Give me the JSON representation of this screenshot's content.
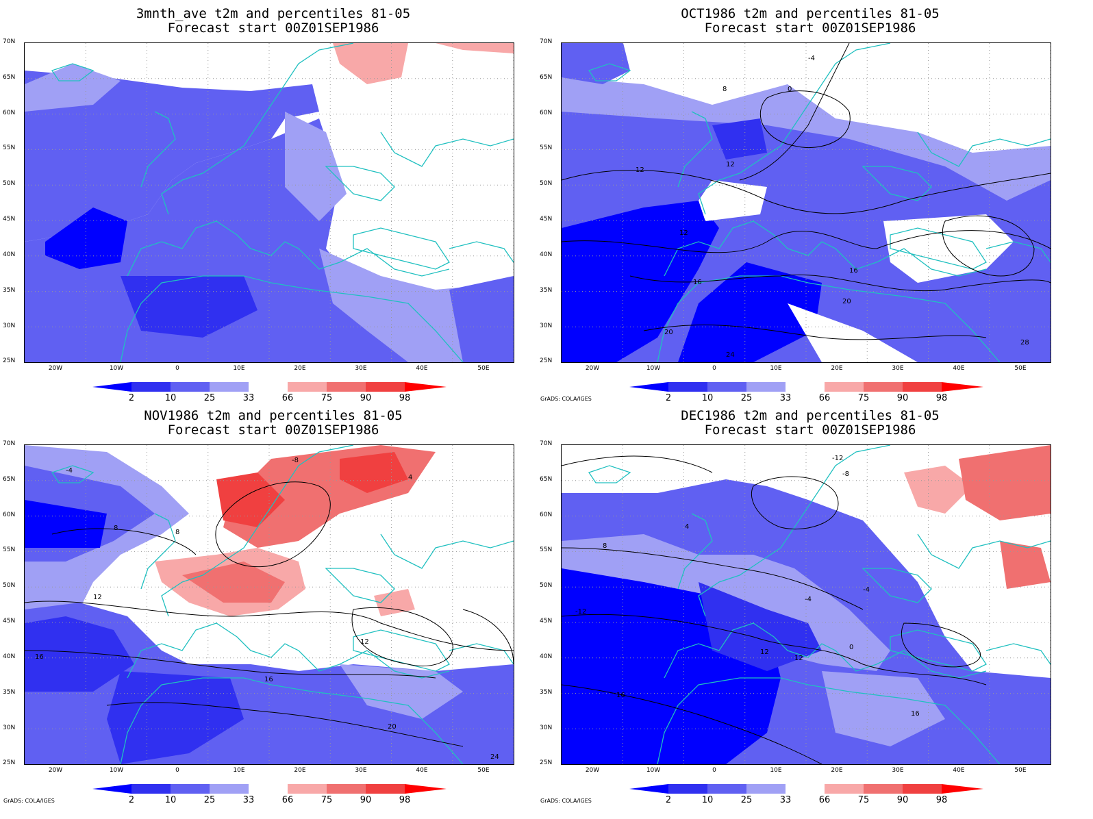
{
  "panels": [
    {
      "title_line1": "3mnth_ave t2m and percentiles 81-05",
      "title_line2": "Forecast start 00Z01SEP1986",
      "credit": ""
    },
    {
      "title_line1": "OCT1986 t2m and percentiles 81-05",
      "title_line2": "Forecast start 00Z01SEP1986",
      "credit": "GrADS: COLA/IGES"
    },
    {
      "title_line1": "NOV1986 t2m and percentiles 81-05",
      "title_line2": "Forecast start 00Z01SEP1986",
      "credit": "GrADS: COLA/IGES"
    },
    {
      "title_line1": "DEC1986 t2m and percentiles 81-05",
      "title_line2": "Forecast start 00Z01SEP1986",
      "credit": "GrADS: COLA/IGES"
    }
  ],
  "lat_labels": [
    "70N",
    "65N",
    "60N",
    "55N",
    "50N",
    "45N",
    "40N",
    "35N",
    "30N",
    "25N"
  ],
  "lon_labels": [
    "20W",
    "10W",
    "0",
    "10E",
    "20E",
    "30E",
    "40E",
    "50E"
  ],
  "colorbar": {
    "labels": [
      "2",
      "10",
      "25",
      "33",
      "66",
      "75",
      "90",
      "98"
    ],
    "colors": [
      "#0000ff",
      "#3030f0",
      "#6060f2",
      "#a0a0f5",
      "#ffffff",
      "#f8a8a8",
      "#f07070",
      "#f04040",
      "#ff0000"
    ]
  },
  "colors": {
    "coastline": "#20c0c0",
    "contour": "#000000",
    "grid": "#999999"
  },
  "contour_labels": {
    "oct": [
      "-4",
      "0",
      "4",
      "8",
      "12",
      "16",
      "20",
      "24",
      "28"
    ],
    "nov": [
      "-8",
      "-4",
      "4",
      "8",
      "12",
      "16",
      "20",
      "24"
    ],
    "dec": [
      "-12",
      "-8",
      "-4",
      "0",
      "4",
      "8",
      "12",
      "16"
    ]
  }
}
